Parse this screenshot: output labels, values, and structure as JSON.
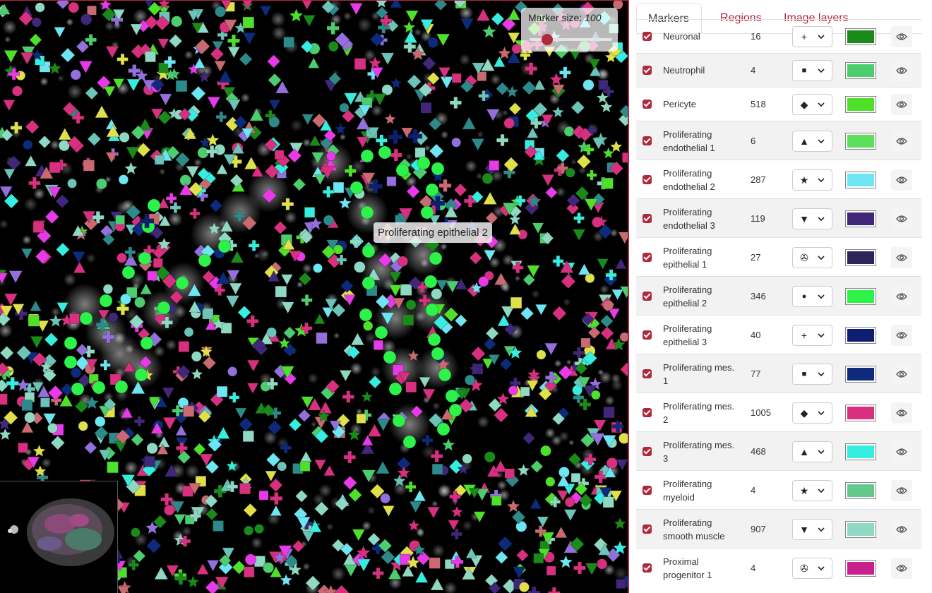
{
  "viewer": {
    "marker_size_label": "Marker size:",
    "marker_size_value": "100",
    "marker_size_slider_fraction": 0.2,
    "tooltip": "Proliferating epithelial 2"
  },
  "tabs": [
    {
      "label": "Markers",
      "active": true
    },
    {
      "label": "Regions",
      "active": false
    },
    {
      "label": "Image layers",
      "active": false
    }
  ],
  "markers": [
    {
      "name": "Neuronal",
      "count": "16",
      "shape": "+",
      "shape_icon": "cross-icon",
      "color": "#1a8a1a",
      "checked": true
    },
    {
      "name": "Neutrophil",
      "count": "4",
      "shape": "■",
      "shape_icon": "square-icon",
      "color": "#4ccd6e",
      "checked": true
    },
    {
      "name": "Pericyte",
      "count": "518",
      "shape": "◆",
      "shape_icon": "diamond-icon",
      "color": "#4fe02b",
      "checked": true
    },
    {
      "name": "Proliferating endothelial 1",
      "count": "6",
      "shape": "▲",
      "shape_icon": "triangle-up-icon",
      "color": "#5ce05c",
      "checked": true
    },
    {
      "name": "Proliferating endothelial 2",
      "count": "287",
      "shape": "★",
      "shape_icon": "star-icon",
      "color": "#6ee5f2",
      "checked": true
    },
    {
      "name": "Proliferating endothelial 3",
      "count": "119",
      "shape": "▼",
      "shape_icon": "triangle-down-icon",
      "color": "#40277a",
      "checked": true
    },
    {
      "name": "Proliferating epithelial 1",
      "count": "27",
      "shape": "✇",
      "shape_icon": "pinwheel-icon",
      "color": "#2e245a",
      "checked": true
    },
    {
      "name": "Proliferating epithelial 2",
      "count": "346",
      "shape": "●",
      "shape_icon": "circle-icon",
      "color": "#2cf24a",
      "checked": true
    },
    {
      "name": "Proliferating epithelial 3",
      "count": "40",
      "shape": "+",
      "shape_icon": "cross-icon",
      "color": "#0f1f70",
      "checked": true
    },
    {
      "name": "Proliferating mes. 1",
      "count": "77",
      "shape": "■",
      "shape_icon": "square-icon",
      "color": "#0e2a7a",
      "checked": true
    },
    {
      "name": "Proliferating mes. 2",
      "count": "1005",
      "shape": "◆",
      "shape_icon": "diamond-icon",
      "color": "#d6307e",
      "checked": true
    },
    {
      "name": "Proliferating mes. 3",
      "count": "468",
      "shape": "▲",
      "shape_icon": "triangle-up-icon",
      "color": "#36eee0",
      "checked": true
    },
    {
      "name": "Proliferating myeloid",
      "count": "4",
      "shape": "★",
      "shape_icon": "star-icon",
      "color": "#62c98a",
      "checked": true
    },
    {
      "name": "Proliferating smooth muscle",
      "count": "907",
      "shape": "▼",
      "shape_icon": "triangle-down-icon",
      "color": "#8fd9c4",
      "checked": true
    },
    {
      "name": "Proximal progenitor 1",
      "count": "4",
      "shape": "✇",
      "shape_icon": "pinwheel-icon",
      "color": "#c91f8e",
      "checked": true
    }
  ]
}
